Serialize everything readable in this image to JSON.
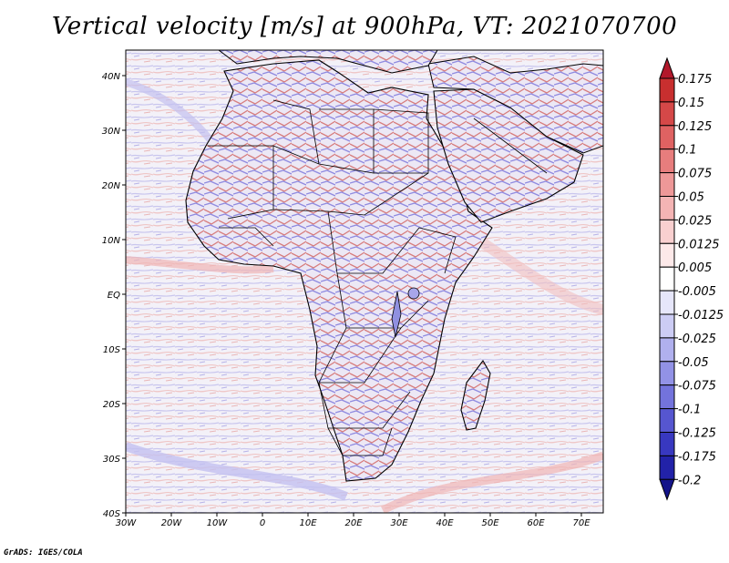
{
  "title": "Vertical velocity [m/s] at 900hPa, VT: 2021070700",
  "credit": "GrADS: IGES/COLA",
  "lon_ticks": [
    "30W",
    "20W",
    "10W",
    "0",
    "10E",
    "20E",
    "30E",
    "40E",
    "50E",
    "60E",
    "70E"
  ],
  "lat_ticks": [
    "40N",
    "30N",
    "20N",
    "10N",
    "EQ",
    "10S",
    "20S",
    "30S",
    "40S"
  ],
  "colorbar": {
    "labels": [
      "0.175",
      "0.15",
      "0.125",
      "0.1",
      "0.075",
      "0.05",
      "0.025",
      "0.0125",
      "0.005",
      "-0.005",
      "-0.0125",
      "-0.025",
      "-0.05",
      "-0.075",
      "-0.1",
      "-0.125",
      "-0.175",
      "-0.2"
    ],
    "colors": [
      "#b2182b",
      "#c82f2f",
      "#d54848",
      "#df6262",
      "#e77d7d",
      "#ee9898",
      "#f4b4b4",
      "#f9d0d0",
      "#fde9e9",
      "#ffffff",
      "#e6e6fa",
      "#ccccf4",
      "#b0b0ee",
      "#9292e6",
      "#7373dc",
      "#5656d0",
      "#3838c0",
      "#2222a8",
      "#14148a"
    ]
  }
}
